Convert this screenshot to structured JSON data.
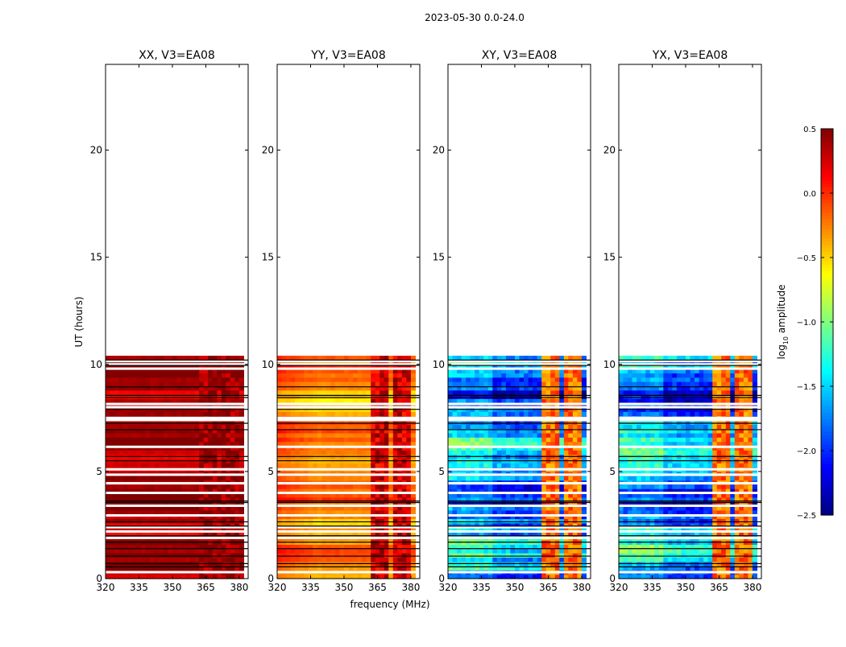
{
  "chart_data": {
    "type": "heatmap",
    "title": "2023-05-30 0.0-24.0",
    "xlabel": "frequency (MHz)",
    "ylabel": "UT (hours)",
    "xlim": [
      320,
      384
    ],
    "ylim": [
      0,
      24
    ],
    "xticks": [
      320,
      335,
      350,
      365,
      380
    ],
    "yticks": [
      0,
      5,
      10,
      15,
      20
    ],
    "data_extent_hours": [
      0,
      10.35
    ],
    "flagged_white_hours": [
      0.3,
      1.9,
      2.2,
      2.4,
      2.95,
      3.4,
      4.0,
      4.45,
      4.85,
      5.1,
      6.15,
      7.4,
      7.5,
      8.0,
      8.15,
      9.8,
      10.0,
      10.15
    ],
    "flagged_black_hours": [
      0.55,
      0.7,
      1.05,
      1.4,
      1.7,
      2.0,
      2.45,
      2.65,
      3.55,
      3.62,
      5.5,
      5.7,
      6.95,
      7.25,
      7.9,
      8.45,
      8.55,
      8.95,
      9.95,
      10.2
    ],
    "rfi_channels_mhz": [
      [
        362,
        366
      ],
      [
        367,
        370
      ],
      [
        372,
        375
      ],
      [
        377,
        380
      ]
    ],
    "panels": [
      {
        "title": "XX, V3=EA08",
        "base_log_amp": 0.38,
        "rfi_log_amp": 0.45
      },
      {
        "title": "YY, V3=EA08",
        "base_log_amp": -0.3,
        "rfi_log_amp": 0.25
      },
      {
        "title": "XY, V3=EA08",
        "base_log_amp": -1.8,
        "rfi_log_amp": -0.2
      },
      {
        "title": "YX, V3=EA08",
        "base_log_amp": -1.8,
        "rfi_log_amp": -0.2
      }
    ],
    "colorbar": {
      "label_main": "log",
      "label_sub": "10",
      "label_rest": " amplitude",
      "range": [
        -2.5,
        0.5
      ],
      "ticks": [
        "0.5",
        "0.0",
        "−0.5",
        "−1.0",
        "−1.5",
        "−2.0",
        "−2.5"
      ],
      "colormap": "jet"
    }
  }
}
